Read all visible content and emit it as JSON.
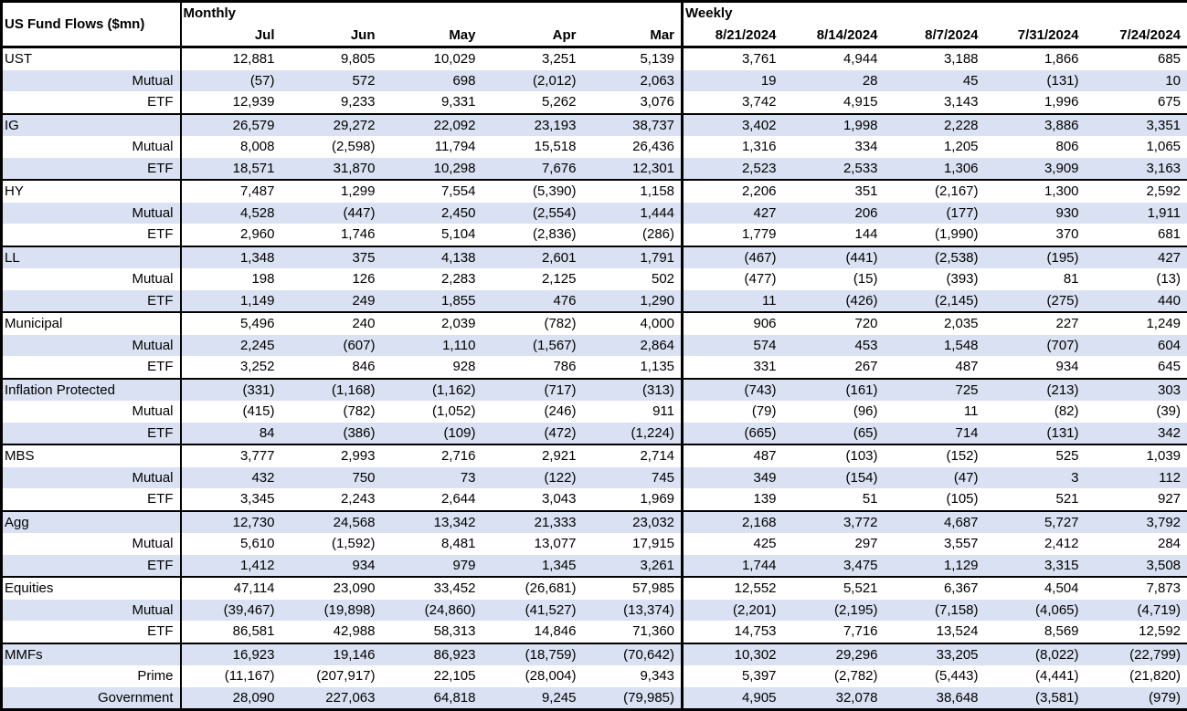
{
  "table": {
    "title": "US Fund Flows ($mn)",
    "section_headers": {
      "monthly": "Monthly",
      "weekly": "Weekly"
    },
    "monthly_columns": [
      "Jul",
      "Jun",
      "May",
      "Apr",
      "Mar"
    ],
    "weekly_columns": [
      "8/21/2024",
      "8/14/2024",
      "8/7/2024",
      "7/31/2024",
      "7/24/2024"
    ],
    "groups": [
      {
        "rows": [
          {
            "label": "UST",
            "type": "category",
            "monthly": [
              "12,881",
              "9,805",
              "10,029",
              "3,251",
              "5,139"
            ],
            "weekly": [
              "3,761",
              "4,944",
              "3,188",
              "1,866",
              "685"
            ]
          },
          {
            "label": "Mutual",
            "type": "sub",
            "monthly": [
              "(57)",
              "572",
              "698",
              "(2,012)",
              "2,063"
            ],
            "weekly": [
              "19",
              "28",
              "45",
              "(131)",
              "10"
            ]
          },
          {
            "label": "ETF",
            "type": "sub",
            "monthly": [
              "12,939",
              "9,233",
              "9,331",
              "5,262",
              "3,076"
            ],
            "weekly": [
              "3,742",
              "4,915",
              "3,143",
              "1,996",
              "675"
            ]
          }
        ]
      },
      {
        "rows": [
          {
            "label": "IG",
            "type": "category",
            "monthly": [
              "26,579",
              "29,272",
              "22,092",
              "23,193",
              "38,737"
            ],
            "weekly": [
              "3,402",
              "1,998",
              "2,228",
              "3,886",
              "3,351"
            ]
          },
          {
            "label": "Mutual",
            "type": "sub",
            "monthly": [
              "8,008",
              "(2,598)",
              "11,794",
              "15,518",
              "26,436"
            ],
            "weekly": [
              "1,316",
              "334",
              "1,205",
              "806",
              "1,065"
            ]
          },
          {
            "label": "ETF",
            "type": "sub",
            "monthly": [
              "18,571",
              "31,870",
              "10,298",
              "7,676",
              "12,301"
            ],
            "weekly": [
              "2,523",
              "2,533",
              "1,306",
              "3,909",
              "3,163"
            ]
          }
        ]
      },
      {
        "rows": [
          {
            "label": "HY",
            "type": "category",
            "monthly": [
              "7,487",
              "1,299",
              "7,554",
              "(5,390)",
              "1,158"
            ],
            "weekly": [
              "2,206",
              "351",
              "(2,167)",
              "1,300",
              "2,592"
            ]
          },
          {
            "label": "Mutual",
            "type": "sub",
            "monthly": [
              "4,528",
              "(447)",
              "2,450",
              "(2,554)",
              "1,444"
            ],
            "weekly": [
              "427",
              "206",
              "(177)",
              "930",
              "1,911"
            ]
          },
          {
            "label": "ETF",
            "type": "sub",
            "monthly": [
              "2,960",
              "1,746",
              "5,104",
              "(2,836)",
              "(286)"
            ],
            "weekly": [
              "1,779",
              "144",
              "(1,990)",
              "370",
              "681"
            ]
          }
        ]
      },
      {
        "rows": [
          {
            "label": "LL",
            "type": "category",
            "monthly": [
              "1,348",
              "375",
              "4,138",
              "2,601",
              "1,791"
            ],
            "weekly": [
              "(467)",
              "(441)",
              "(2,538)",
              "(195)",
              "427"
            ]
          },
          {
            "label": "Mutual",
            "type": "sub",
            "monthly": [
              "198",
              "126",
              "2,283",
              "2,125",
              "502"
            ],
            "weekly": [
              "(477)",
              "(15)",
              "(393)",
              "81",
              "(13)"
            ]
          },
          {
            "label": "ETF",
            "type": "sub",
            "monthly": [
              "1,149",
              "249",
              "1,855",
              "476",
              "1,290"
            ],
            "weekly": [
              "11",
              "(426)",
              "(2,145)",
              "(275)",
              "440"
            ]
          }
        ]
      },
      {
        "rows": [
          {
            "label": "Municipal",
            "type": "category",
            "monthly": [
              "5,496",
              "240",
              "2,039",
              "(782)",
              "4,000"
            ],
            "weekly": [
              "906",
              "720",
              "2,035",
              "227",
              "1,249"
            ]
          },
          {
            "label": "Mutual",
            "type": "sub",
            "monthly": [
              "2,245",
              "(607)",
              "1,110",
              "(1,567)",
              "2,864"
            ],
            "weekly": [
              "574",
              "453",
              "1,548",
              "(707)",
              "604"
            ]
          },
          {
            "label": "ETF",
            "type": "sub",
            "monthly": [
              "3,252",
              "846",
              "928",
              "786",
              "1,135"
            ],
            "weekly": [
              "331",
              "267",
              "487",
              "934",
              "645"
            ]
          }
        ]
      },
      {
        "rows": [
          {
            "label": "Inflation Protected",
            "type": "category",
            "monthly": [
              "(331)",
              "(1,168)",
              "(1,162)",
              "(717)",
              "(313)"
            ],
            "weekly": [
              "(743)",
              "(161)",
              "725",
              "(213)",
              "303"
            ]
          },
          {
            "label": "Mutual",
            "type": "sub",
            "monthly": [
              "(415)",
              "(782)",
              "(1,052)",
              "(246)",
              "911"
            ],
            "weekly": [
              "(79)",
              "(96)",
              "11",
              "(82)",
              "(39)"
            ]
          },
          {
            "label": "ETF",
            "type": "sub",
            "monthly": [
              "84",
              "(386)",
              "(109)",
              "(472)",
              "(1,224)"
            ],
            "weekly": [
              "(665)",
              "(65)",
              "714",
              "(131)",
              "342"
            ]
          }
        ]
      },
      {
        "rows": [
          {
            "label": "MBS",
            "type": "category",
            "monthly": [
              "3,777",
              "2,993",
              "2,716",
              "2,921",
              "2,714"
            ],
            "weekly": [
              "487",
              "(103)",
              "(152)",
              "525",
              "1,039"
            ]
          },
          {
            "label": "Mutual",
            "type": "sub",
            "monthly": [
              "432",
              "750",
              "73",
              "(122)",
              "745"
            ],
            "weekly": [
              "349",
              "(154)",
              "(47)",
              "3",
              "112"
            ]
          },
          {
            "label": "ETF",
            "type": "sub",
            "monthly": [
              "3,345",
              "2,243",
              "2,644",
              "3,043",
              "1,969"
            ],
            "weekly": [
              "139",
              "51",
              "(105)",
              "521",
              "927"
            ]
          }
        ]
      },
      {
        "rows": [
          {
            "label": "Agg",
            "type": "category",
            "monthly": [
              "12,730",
              "24,568",
              "13,342",
              "21,333",
              "23,032"
            ],
            "weekly": [
              "2,168",
              "3,772",
              "4,687",
              "5,727",
              "3,792"
            ]
          },
          {
            "label": "Mutual",
            "type": "sub",
            "monthly": [
              "5,610",
              "(1,592)",
              "8,481",
              "13,077",
              "17,915"
            ],
            "weekly": [
              "425",
              "297",
              "3,557",
              "2,412",
              "284"
            ]
          },
          {
            "label": "ETF",
            "type": "sub",
            "monthly": [
              "1,412",
              "934",
              "979",
              "1,345",
              "3,261"
            ],
            "weekly": [
              "1,744",
              "3,475",
              "1,129",
              "3,315",
              "3,508"
            ]
          }
        ]
      },
      {
        "rows": [
          {
            "label": "Equities",
            "type": "category",
            "monthly": [
              "47,114",
              "23,090",
              "33,452",
              "(26,681)",
              "57,985"
            ],
            "weekly": [
              "12,552",
              "5,521",
              "6,367",
              "4,504",
              "7,873"
            ]
          },
          {
            "label": "Mutual",
            "type": "sub",
            "monthly": [
              "(39,467)",
              "(19,898)",
              "(24,860)",
              "(41,527)",
              "(13,374)"
            ],
            "weekly": [
              "(2,201)",
              "(2,195)",
              "(7,158)",
              "(4,065)",
              "(4,719)"
            ]
          },
          {
            "label": "ETF",
            "type": "sub",
            "monthly": [
              "86,581",
              "42,988",
              "58,313",
              "14,846",
              "71,360"
            ],
            "weekly": [
              "14,753",
              "7,716",
              "13,524",
              "8,569",
              "12,592"
            ]
          }
        ]
      },
      {
        "rows": [
          {
            "label": "MMFs",
            "type": "category",
            "monthly": [
              "16,923",
              "19,146",
              "86,923",
              "(18,759)",
              "(70,642)"
            ],
            "weekly": [
              "10,302",
              "29,296",
              "33,205",
              "(8,022)",
              "(22,799)"
            ]
          },
          {
            "label": "Prime",
            "type": "sub",
            "monthly": [
              "(11,167)",
              "(207,917)",
              "22,105",
              "(28,004)",
              "9,343"
            ],
            "weekly": [
              "5,397",
              "(2,782)",
              "(5,443)",
              "(4,441)",
              "(21,820)"
            ]
          },
          {
            "label": "Government",
            "type": "sub",
            "monthly": [
              "28,090",
              "227,063",
              "64,818",
              "9,245",
              "(79,985)"
            ],
            "weekly": [
              "4,905",
              "32,078",
              "38,648",
              "(3,581)",
              "(979)"
            ]
          }
        ]
      }
    ]
  },
  "colors": {
    "row_band": "#d9e1f2",
    "border": "#000000",
    "background": "#ffffff",
    "text": "#000000"
  }
}
